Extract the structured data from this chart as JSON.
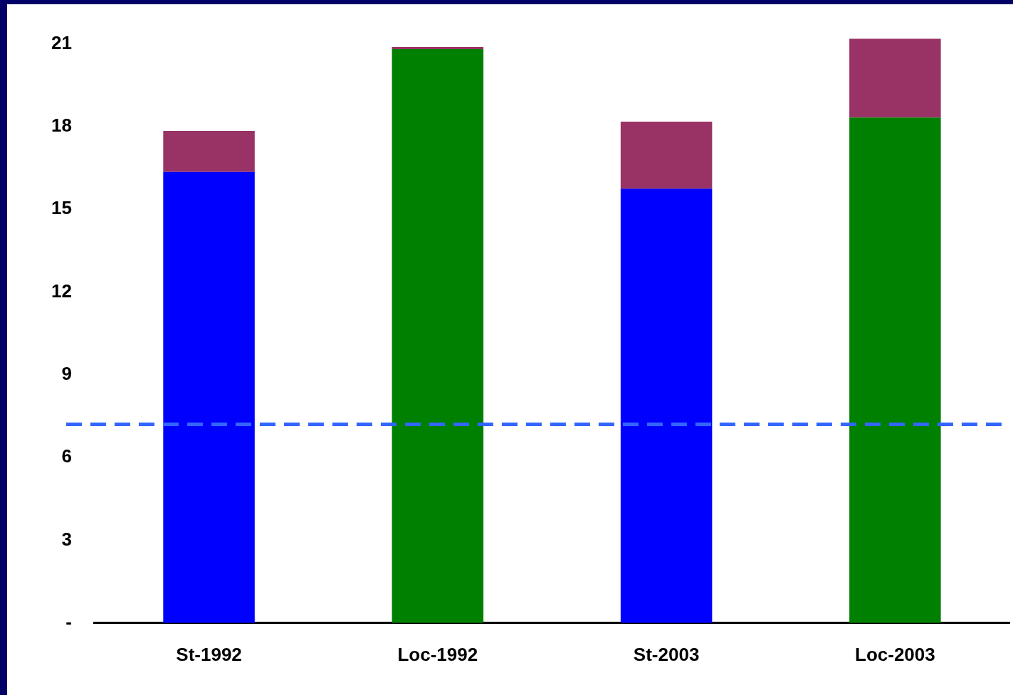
{
  "chart_data": {
    "type": "bar",
    "stacked": true,
    "categories": [
      "St-1992",
      "Loc-1992",
      "St-2003",
      "Loc-2003"
    ],
    "series": [
      {
        "colors": [
          "#0000ff",
          "#008000",
          "#0000ff",
          "#008000"
        ],
        "values": [
          16.35,
          20.8,
          15.74,
          18.32
        ]
      },
      {
        "color": "#993366",
        "values": [
          1.49,
          0.08,
          2.43,
          2.86
        ]
      }
    ],
    "ylim": [
      0,
      21.2
    ],
    "yticks": [
      {
        "value": 0,
        "label": "-"
      },
      3,
      6,
      9,
      12,
      15,
      18,
      21
    ],
    "grid": false,
    "legend": false,
    "ref_lines": [
      {
        "axis": "y",
        "value": 7.2,
        "color": "#3366ff",
        "line_style": "dashed"
      }
    ]
  }
}
